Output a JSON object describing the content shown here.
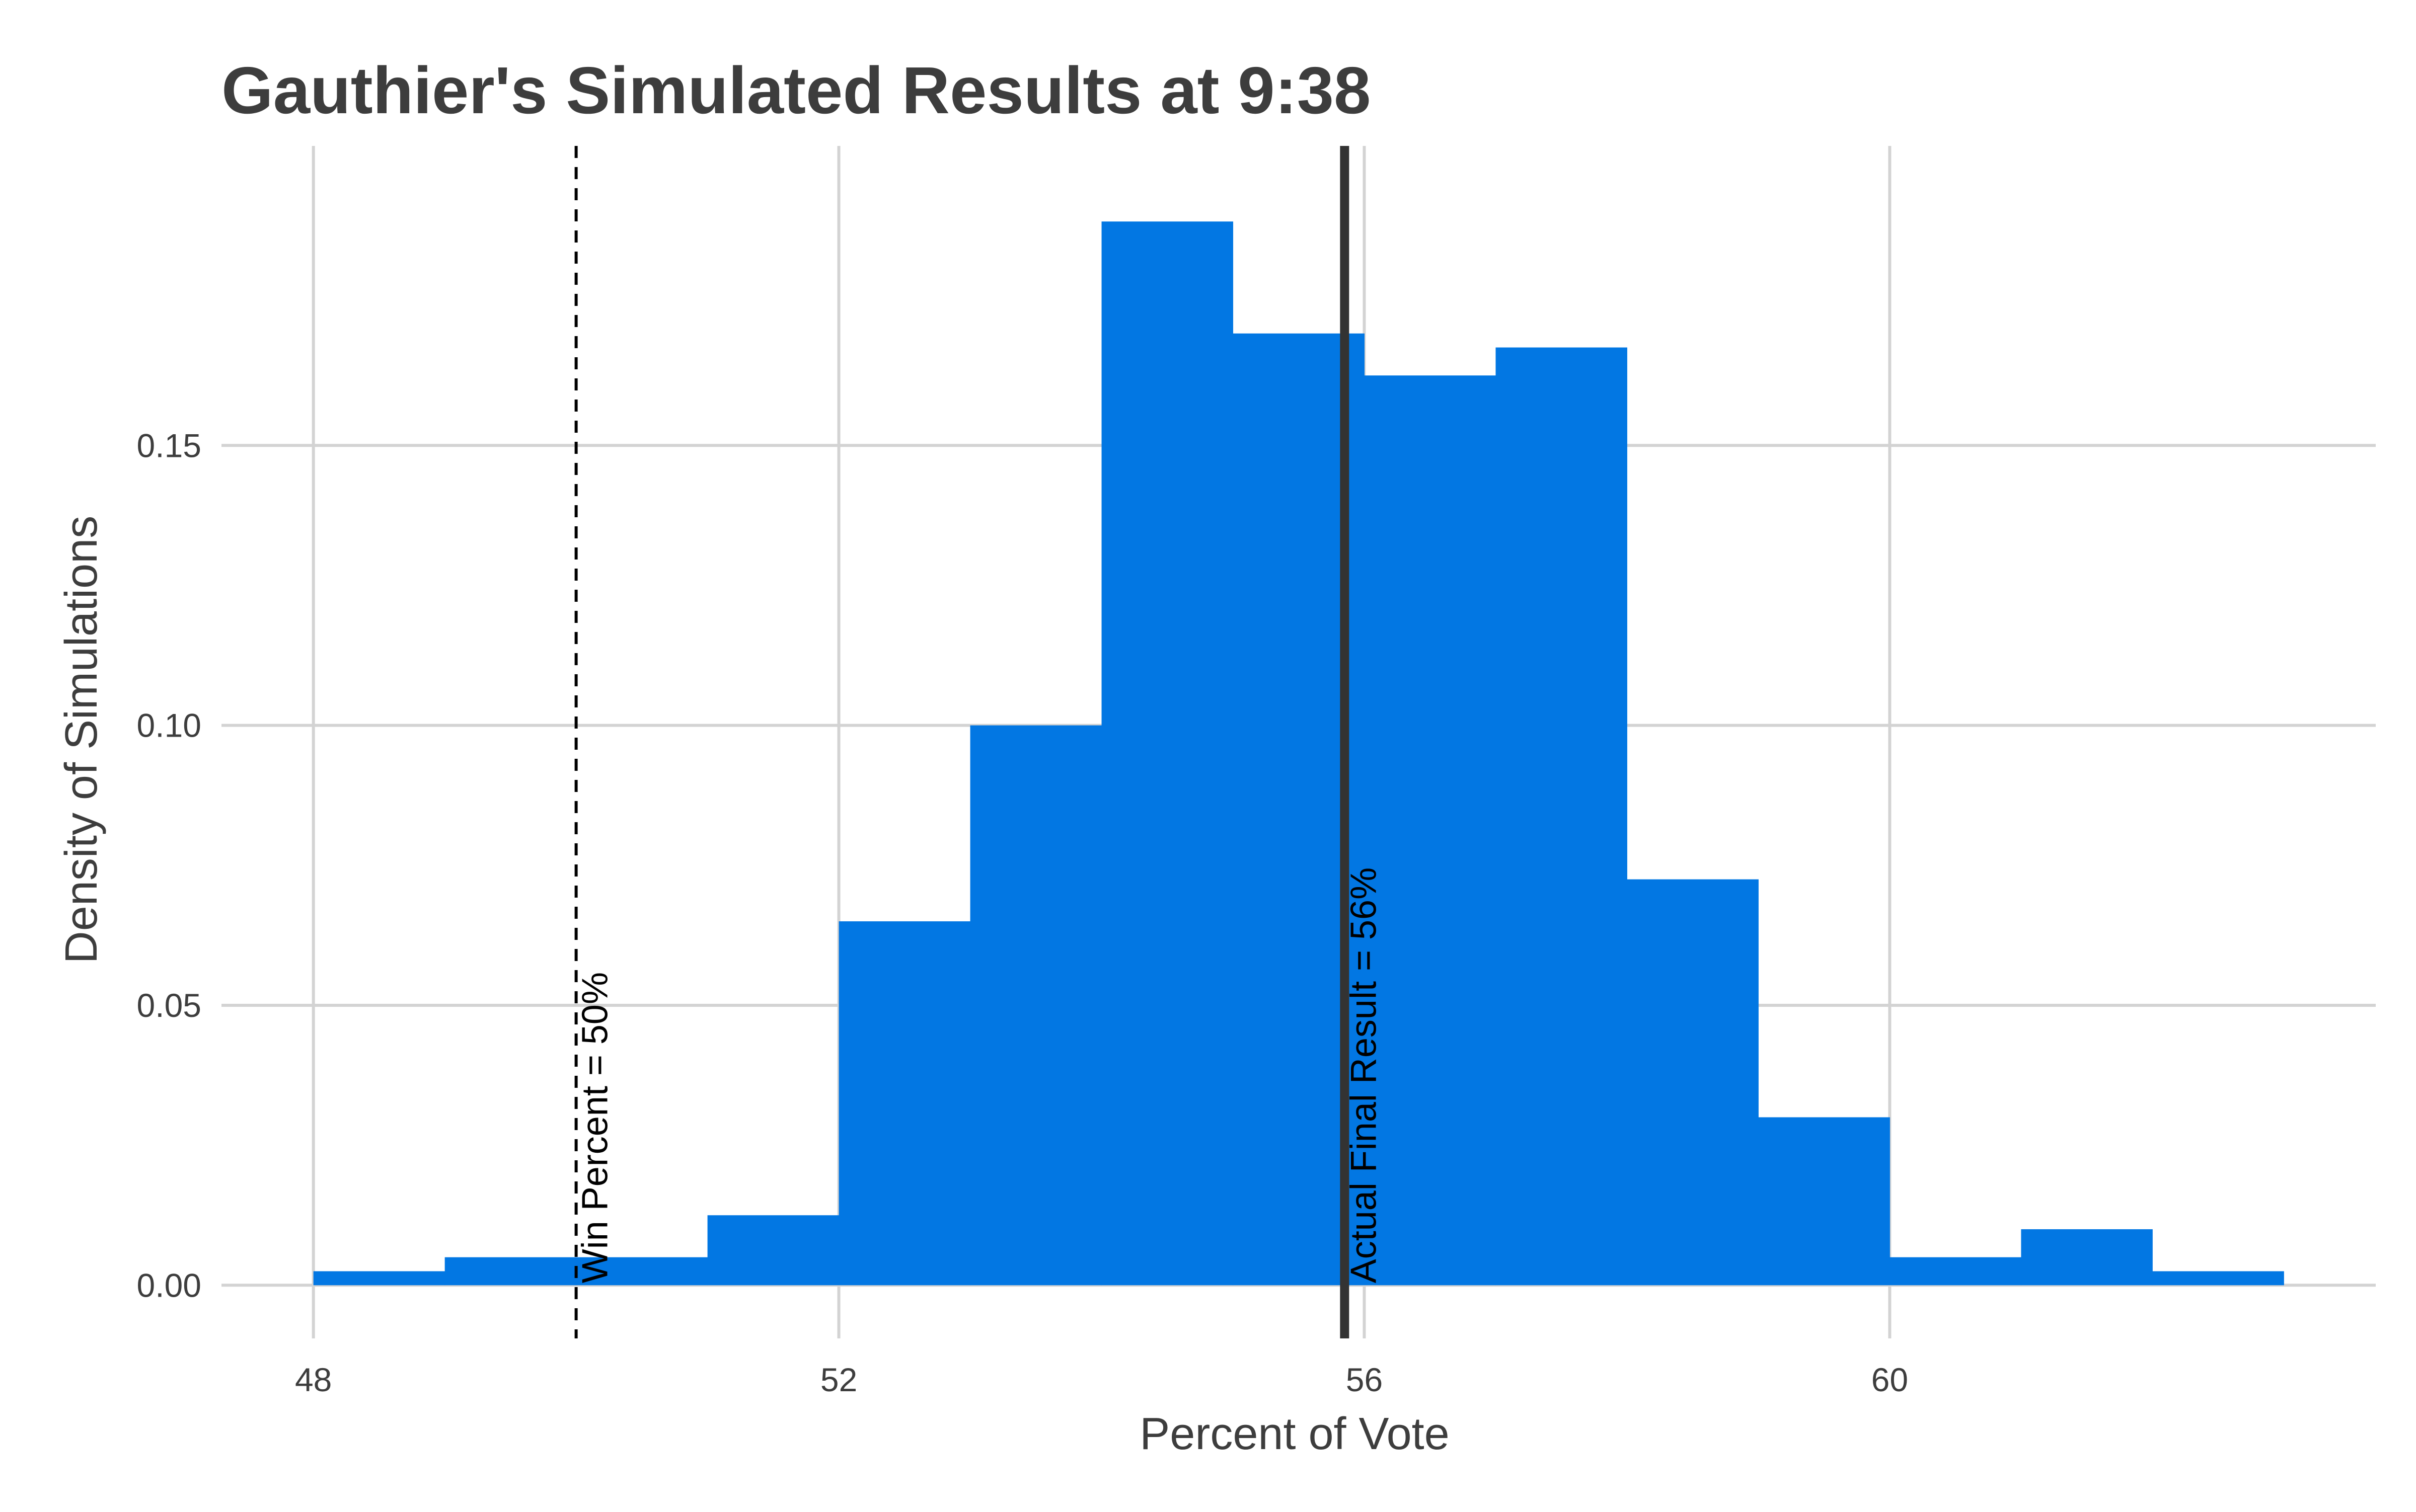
{
  "chart_data": {
    "type": "bar",
    "title": "Gauthier's Simulated Results at 9:38",
    "xlabel": "Percent of Vote",
    "ylabel": "Density of Simulations",
    "xlim": [
      47.3,
      63.7
    ],
    "ylim": [
      -0.0095,
      0.2035
    ],
    "x_ticks": [
      48,
      52,
      56,
      60
    ],
    "x_tick_labels": [
      "48",
      "52",
      "56",
      "60"
    ],
    "y_ticks": [
      0.0,
      0.05,
      0.1,
      0.15
    ],
    "y_tick_labels": [
      "0.00",
      "0.05",
      "0.10",
      "0.15"
    ],
    "grid": true,
    "legend": "none",
    "bar_color": "#0277e3",
    "bins": [
      {
        "x0": 48,
        "x1": 49,
        "density": 0.0025
      },
      {
        "x0": 49,
        "x1": 50,
        "density": 0.005
      },
      {
        "x0": 50,
        "x1": 51,
        "density": 0.005
      },
      {
        "x0": 51,
        "x1": 52,
        "density": 0.0125
      },
      {
        "x0": 52,
        "x1": 53,
        "density": 0.065
      },
      {
        "x0": 53,
        "x1": 54,
        "density": 0.1
      },
      {
        "x0": 54,
        "x1": 55,
        "density": 0.19
      },
      {
        "x0": 55,
        "x1": 56,
        "density": 0.17
      },
      {
        "x0": 56,
        "x1": 57,
        "density": 0.1625
      },
      {
        "x0": 57,
        "x1": 58,
        "density": 0.1675
      },
      {
        "x0": 58,
        "x1": 59,
        "density": 0.0725
      },
      {
        "x0": 59,
        "x1": 60,
        "density": 0.03
      },
      {
        "x0": 60,
        "x1": 61,
        "density": 0.005
      },
      {
        "x0": 61,
        "x1": 62,
        "density": 0.01
      },
      {
        "x0": 62,
        "x1": 63,
        "density": 0.0025
      }
    ],
    "reference_lines": [
      {
        "x": 50,
        "style": "dashed",
        "color": "#000000",
        "label": "Win Percent = 50%"
      },
      {
        "x": 55.85,
        "style": "solid",
        "color": "#333333",
        "label": "Actual Final Result = 56%"
      }
    ]
  }
}
